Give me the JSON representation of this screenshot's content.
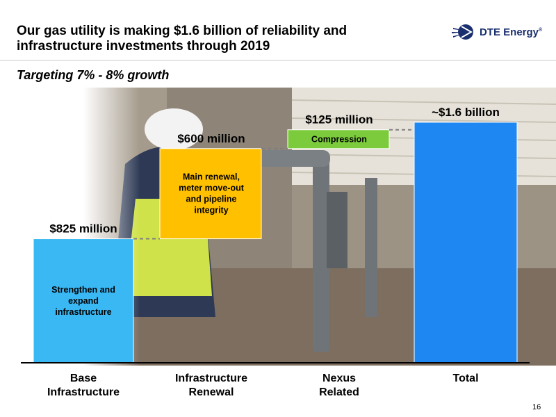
{
  "header": {
    "title_line1": "Our gas utility is making $1.6 billion of reliability and",
    "title_line2": "infrastructure investments through 2019",
    "subtitle": "Targeting 7% - 8% growth",
    "logo_text": "DTE Energy",
    "logo_mark": "®"
  },
  "page_number": "16",
  "colors": {
    "base": "#3ab8f4",
    "renewal": "#ffc000",
    "nexus": "#7ccb3c",
    "total": "#1f87f2",
    "logo_blue": "#1a2f6e"
  },
  "chart_data": {
    "type": "bar",
    "subtype": "waterfall",
    "categories": [
      [
        "Base",
        "Infrastructure"
      ],
      [
        "Infrastructure",
        "Renewal"
      ],
      [
        "Nexus",
        "Related"
      ],
      [
        "Total"
      ]
    ],
    "values_millions": [
      825,
      600,
      125,
      1600
    ],
    "value_labels": [
      "$825 million",
      "$600 million",
      "$125 million",
      "~$1.6 billion"
    ],
    "bar_texts": [
      [
        "Strengthen and",
        "expand",
        "infrastructure"
      ],
      [
        "Main renewal,",
        "meter move-out",
        "and pipeline",
        "integrity"
      ],
      [
        "Compression"
      ],
      []
    ],
    "connectors": "dashed",
    "grid": false,
    "legend": "none"
  }
}
